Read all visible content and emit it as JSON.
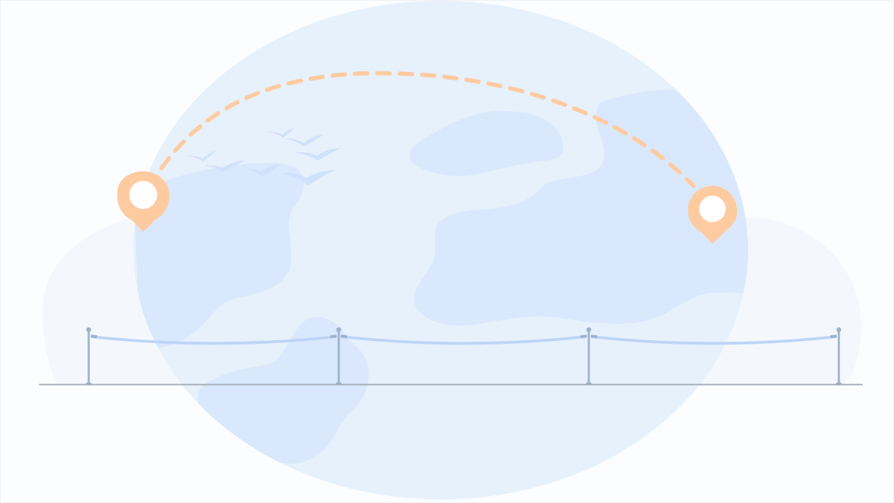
{
  "illustration": {
    "subject": "globe-travel-route-with-stanchion-barrier",
    "colors": {
      "page_background": "#fcfdfe",
      "backdrop_cloud": "#f4f8fc",
      "globe_ocean": "#e6f1fc",
      "globe_land": "#d9e8fc",
      "route_dash": "#fecba0",
      "pin": "#fecba0",
      "pin_hole": "#ffffff",
      "birds": "#cfe1fb",
      "post": "#9db2cd",
      "rope": "#bcd4f6",
      "ground": "#a4abb6"
    },
    "icons": [
      "origin-pin-icon",
      "destination-pin-icon",
      "bird-flock-icon",
      "stanchion-post-icon"
    ]
  }
}
